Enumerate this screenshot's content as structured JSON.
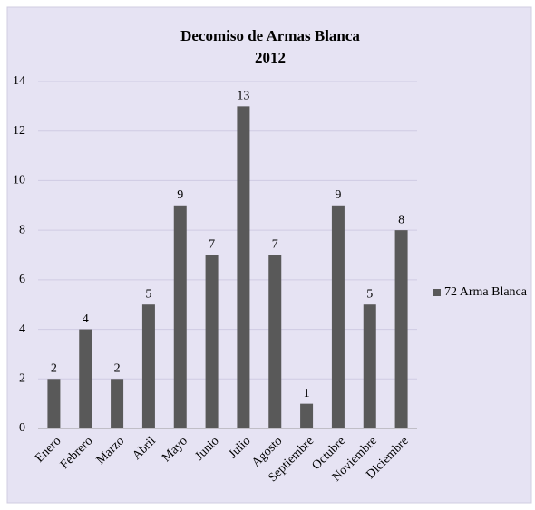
{
  "chart_data": {
    "type": "bar",
    "title": "Decomiso de Armas Blanca",
    "subtitle": "2012",
    "categories": [
      "Enero",
      "Febrero",
      "Marzo",
      "Abril",
      "Mayo",
      "Junio",
      "Julio",
      "Agosto",
      "Septiembre",
      "Octubre",
      "Noviembre",
      "Diciembre"
    ],
    "series": [
      {
        "name": "72 Arma Blanca",
        "color": "#595959",
        "values": [
          2,
          4,
          2,
          5,
          9,
          7,
          13,
          7,
          1,
          9,
          5,
          8
        ]
      }
    ],
    "ylim": [
      0,
      14
    ],
    "yticks": [
      0,
      2,
      4,
      6,
      8,
      10,
      12,
      14
    ],
    "grid": true,
    "legend": "right"
  }
}
